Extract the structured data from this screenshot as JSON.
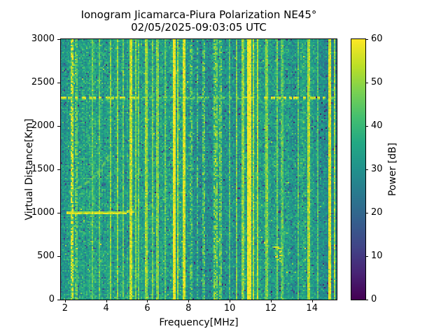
{
  "title": {
    "line1": "Ionogram Jicamarca-Piura Polarization NE45°",
    "line2": "02/05/2025-09:03:05 UTC"
  },
  "chart_data": {
    "type": "heatmap",
    "title": "Ionogram Jicamarca-Piura Polarization NE45°",
    "subtitle": "02/05/2025-09:03:05 UTC",
    "xlabel": "Frequency[MHz]",
    "ylabel": "Virtual Distance[Km]",
    "xlim": [
      1.8,
      15.2
    ],
    "ylim": [
      0,
      3000
    ],
    "xticks": [
      2,
      4,
      6,
      8,
      10,
      12,
      14
    ],
    "yticks": [
      0,
      500,
      1000,
      1500,
      2000,
      2500,
      3000
    ],
    "grid": false,
    "legend": "none",
    "colorbar": {
      "label": "Power [dB]",
      "min": 0,
      "max": 60,
      "ticks": [
        0,
        10,
        20,
        30,
        40,
        50,
        60
      ],
      "colormap": "viridis"
    },
    "viridis_stops": [
      "#440154",
      "#482475",
      "#414487",
      "#355f8d",
      "#2a788e",
      "#21918c",
      "#22a884",
      "#44bf70",
      "#7ad151",
      "#bddf26",
      "#fde725"
    ],
    "background_db": {
      "mean": 33.5,
      "noise_sd": 4.2,
      "dark_speckle_prob": 0.05,
      "bright_speckle_prob": 0.012,
      "seed": 7
    },
    "band_offsets_db": [
      [
        1.8,
        2.1,
        -2.0
      ],
      [
        2.55,
        3.25,
        1.5
      ],
      [
        5.0,
        5.5,
        1.0
      ],
      [
        7.15,
        7.95,
        2.0
      ],
      [
        8.0,
        9.25,
        -4.0
      ],
      [
        9.25,
        9.65,
        0.5
      ],
      [
        9.65,
        10.55,
        -3.0
      ],
      [
        10.85,
        11.55,
        1.5
      ],
      [
        12.4,
        13.45,
        -2.0
      ],
      [
        14.1,
        15.2,
        -4.5
      ]
    ],
    "rfi_stripes": [
      {
        "f": 2.35,
        "w": 2.5,
        "db": 57,
        "dashed": true
      },
      {
        "f": 2.55,
        "w": 1.5,
        "db": 46,
        "dashed": true
      },
      {
        "f": 3.3,
        "w": 1.0,
        "db": 46,
        "dashed": false
      },
      {
        "f": 3.7,
        "w": 1.0,
        "db": 45,
        "dashed": false
      },
      {
        "f": 4.2,
        "w": 1.5,
        "db": 49,
        "dashed": false
      },
      {
        "f": 4.55,
        "w": 1.5,
        "db": 49,
        "dashed": false
      },
      {
        "f": 4.8,
        "w": 1.0,
        "db": 46,
        "dashed": false
      },
      {
        "f": 5.2,
        "w": 2.0,
        "db": 54,
        "dashed": false
      },
      {
        "f": 5.45,
        "w": 1.0,
        "db": 48,
        "dashed": false
      },
      {
        "f": 5.6,
        "w": 1.0,
        "db": 47,
        "dashed": false
      },
      {
        "f": 5.95,
        "w": 1.5,
        "db": 50,
        "dashed": false
      },
      {
        "f": 6.25,
        "w": 1.0,
        "db": 47,
        "dashed": false
      },
      {
        "f": 6.5,
        "w": 1.5,
        "db": 48,
        "dashed": false
      },
      {
        "f": 6.85,
        "w": 1.0,
        "db": 45,
        "dashed": false
      },
      {
        "f": 7.3,
        "w": 3.0,
        "db": 59,
        "dashed": false
      },
      {
        "f": 7.47,
        "w": 1.0,
        "db": 51,
        "dashed": false
      },
      {
        "f": 7.78,
        "w": 2.0,
        "db": 56,
        "dashed": false
      },
      {
        "f": 8.1,
        "w": 3.0,
        "db": 45,
        "dashed": true
      },
      {
        "f": 8.45,
        "w": 1.0,
        "db": 43,
        "dashed": true
      },
      {
        "f": 8.75,
        "w": 2.0,
        "db": 46,
        "dashed": true
      },
      {
        "f": 9.3,
        "w": 4.0,
        "db": 48,
        "dashed": true
      },
      {
        "f": 9.55,
        "w": 2.0,
        "db": 47,
        "dashed": true
      },
      {
        "f": 10.0,
        "w": 1.0,
        "db": 44,
        "dashed": false
      },
      {
        "f": 10.35,
        "w": 1.5,
        "db": 48,
        "dashed": false
      },
      {
        "f": 10.65,
        "w": 1.5,
        "db": 49,
        "dashed": false
      },
      {
        "f": 10.95,
        "w": 3.0,
        "db": 59,
        "dashed": false
      },
      {
        "f": 11.15,
        "w": 1.5,
        "db": 52,
        "dashed": false
      },
      {
        "f": 11.35,
        "w": 1.5,
        "db": 53,
        "dashed": false
      },
      {
        "f": 11.8,
        "w": 1.5,
        "db": 48,
        "dashed": false
      },
      {
        "f": 12.3,
        "w": 1.0,
        "db": 46,
        "dashed": false
      },
      {
        "f": 12.55,
        "w": 1.0,
        "db": 44,
        "dashed": false
      },
      {
        "f": 13.3,
        "w": 1.0,
        "db": 44,
        "dashed": false
      },
      {
        "f": 13.85,
        "w": 1.5,
        "db": 52,
        "dashed": false
      },
      {
        "f": 14.3,
        "w": 1.0,
        "db": 43,
        "dashed": false
      },
      {
        "f": 14.85,
        "w": 2.0,
        "db": 57,
        "dashed": false
      },
      {
        "f": 15.1,
        "w": 1.5,
        "db": 51,
        "dashed": false
      }
    ],
    "horizontal_line": {
      "distance_km": 2330,
      "db_strong": 57,
      "db_weak": 47,
      "strong_ranges": [
        [
          1.83,
          5.7
        ],
        [
          11.6,
          14.9
        ]
      ]
    },
    "echo_trace": {
      "distance_km": 990,
      "f_start": 2.05,
      "f_end": 5.35,
      "db": 57,
      "faint_f_end": 7.2,
      "faint_db": 44,
      "bend_start_f": 4.8,
      "bend_km_per_mhz": 40
    },
    "cusp_arc": {
      "db": 47,
      "points": [
        [
          2.2,
          1245
        ],
        [
          2.55,
          1275
        ],
        [
          2.9,
          1320
        ],
        [
          3.25,
          1380
        ],
        [
          3.55,
          1450
        ],
        [
          3.8,
          1530
        ],
        [
          3.98,
          1600
        ],
        [
          4.1,
          1655
        ]
      ]
    },
    "faint_arc": {
      "db": 43,
      "points": [
        [
          2.85,
          1965
        ],
        [
          3.1,
          1875
        ],
        [
          3.35,
          1790
        ],
        [
          3.6,
          1705
        ]
      ]
    },
    "bright_patch": {
      "f_range": [
        12.15,
        12.45
      ],
      "d_range": [
        430,
        620
      ],
      "db": 55,
      "blobs": 16
    }
  }
}
